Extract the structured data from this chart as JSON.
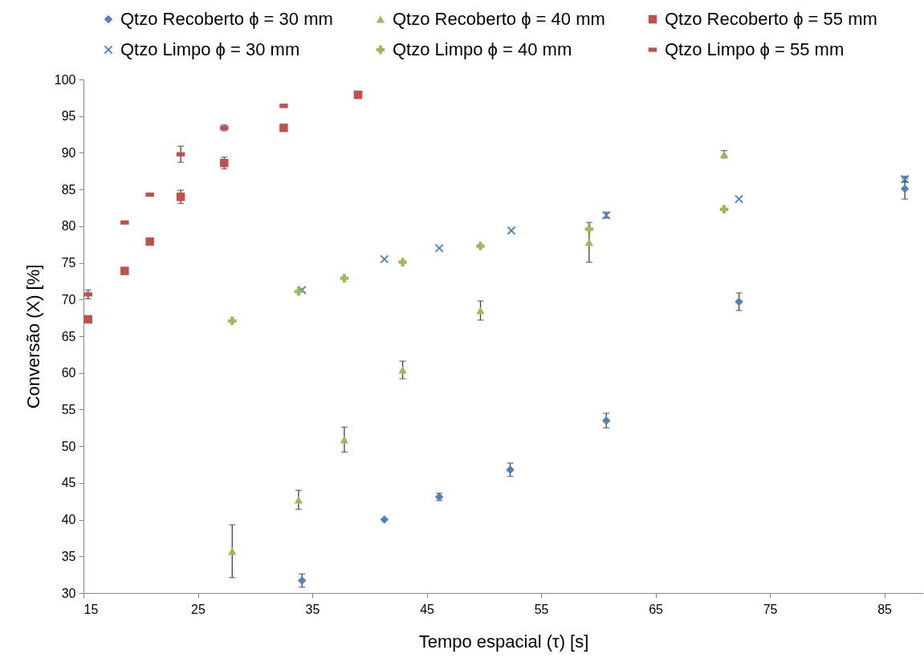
{
  "chart_data": {
    "type": "scatter",
    "xlabel": "Tempo espacial (τ) [s]",
    "ylabel": "Conversão (X) [%]",
    "xlim": [
      15,
      88.4
    ],
    "xticks": [
      15,
      25,
      35,
      45,
      55,
      65,
      75,
      85
    ],
    "ylim": [
      30,
      100
    ],
    "yticks": [
      30,
      35,
      40,
      45,
      50,
      55,
      60,
      65,
      70,
      75,
      80,
      85,
      90,
      95,
      100
    ],
    "grid": false,
    "legend": "top",
    "series": [
      {
        "name": "Qtzo Recoberto ϕ = 30 mm",
        "color": "#4f81bd",
        "marker": "diamond",
        "x": [
          34.1,
          41.3,
          46.1,
          52.3,
          60.7,
          72.3,
          86.8
        ],
        "values": [
          31.7,
          40.0,
          43.1,
          46.8,
          53.5,
          69.7,
          85.1
        ],
        "errors": [
          0.9,
          null,
          0.5,
          0.9,
          1.0,
          1.2,
          1.4
        ]
      },
      {
        "name": "Qtzo Recoberto ϕ = 40 mm",
        "color": "#9bbb59",
        "marker": "triangle",
        "x": [
          28.0,
          33.8,
          37.8,
          42.9,
          49.7,
          59.2,
          71.0
        ],
        "values": [
          35.7,
          42.7,
          50.9,
          60.4,
          68.5,
          77.8,
          89.8
        ],
        "errors": [
          3.6,
          1.3,
          1.7,
          1.2,
          1.3,
          2.7,
          0.5
        ]
      },
      {
        "name": "Qtzo Recoberto ϕ = 55 mm",
        "color": "#c0504d",
        "marker": "square",
        "x": [
          15.4,
          18.6,
          20.8,
          23.5,
          27.3,
          32.5,
          39.0
        ],
        "values": [
          67.3,
          73.9,
          77.9,
          84.0,
          88.6,
          93.4,
          97.9
        ],
        "errors": [
          null,
          null,
          null,
          0.9,
          0.8,
          null,
          null
        ]
      },
      {
        "name": "Qtzo Limpo ϕ = 30 mm",
        "color": "#4f81bd",
        "marker": "cross",
        "x": [
          34.1,
          41.3,
          46.1,
          52.4,
          60.7,
          72.3,
          86.8
        ],
        "values": [
          71.3,
          75.5,
          77.0,
          79.4,
          81.5,
          83.7,
          86.4
        ],
        "errors": [
          null,
          null,
          null,
          null,
          0.4,
          null,
          0.4
        ]
      },
      {
        "name": "Qtzo Limpo ϕ = 40 mm",
        "color": "#9bbb59",
        "marker": "plus",
        "x": [
          28.0,
          33.8,
          37.8,
          42.9,
          49.7,
          59.2,
          71.0
        ],
        "values": [
          67.1,
          71.1,
          72.9,
          75.1,
          77.3,
          79.6,
          82.3
        ],
        "errors": [
          null,
          null,
          null,
          null,
          null,
          null,
          null
        ]
      },
      {
        "name": "Qtzo Limpo ϕ = 55 mm",
        "color": "#c0504d",
        "x": [
          15.4,
          18.6,
          20.8,
          23.5,
          27.3,
          32.5,
          39.0
        ],
        "values": [
          70.7,
          80.5,
          84.3,
          89.8,
          93.4,
          96.4,
          98.1
        ],
        "errors": [
          0.6,
          null,
          0.2,
          1.1,
          0.4,
          0.2,
          null
        ]
      }
    ]
  }
}
